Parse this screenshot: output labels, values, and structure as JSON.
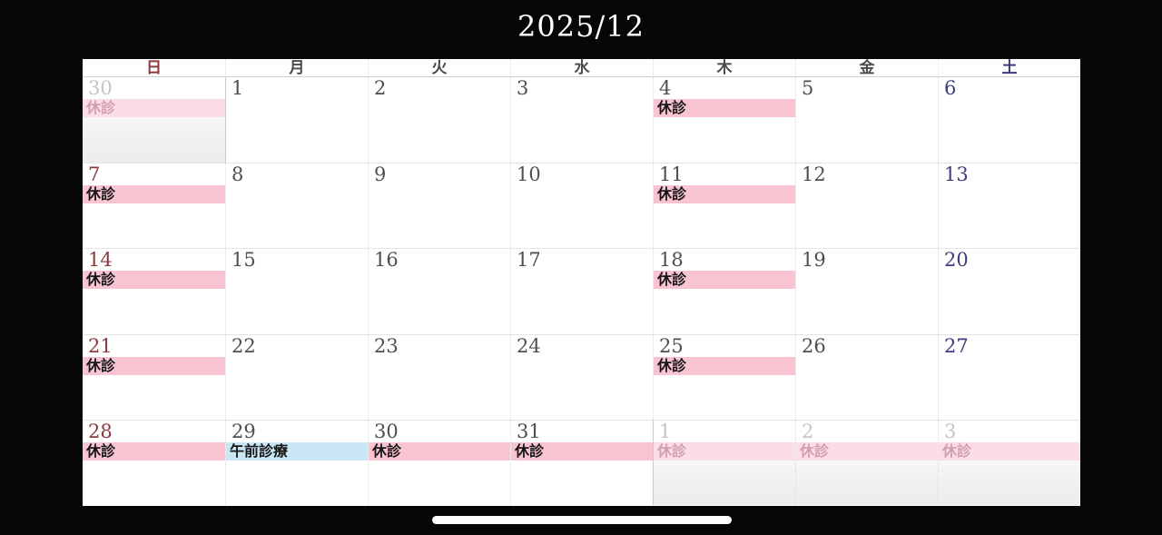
{
  "title": "2025/12",
  "colors": {
    "sunday_text": "#8b3a3e",
    "saturday_text": "#3c3c7e",
    "weekday_text": "#4f4f4f",
    "adjacent_text": "#c2c6c9",
    "event_closed_bg": "#f9c4d2",
    "event_closed_faded_bg": "#fbdce7",
    "event_morning_bg": "#c9e6f5",
    "event_text": "#161616",
    "event_text_faded": "#d29fb1",
    "title_text": "#ffffff"
  },
  "weekday_header": [
    {
      "label": "日",
      "role": "sunday"
    },
    {
      "label": "月",
      "role": "weekday"
    },
    {
      "label": "火",
      "role": "weekday"
    },
    {
      "label": "水",
      "role": "weekday"
    },
    {
      "label": "木",
      "role": "weekday"
    },
    {
      "label": "金",
      "role": "weekday"
    },
    {
      "label": "土",
      "role": "saturday"
    }
  ],
  "weeks": [
    {
      "days": [
        {
          "date": "30",
          "in_month": "prev",
          "weekday": "sun",
          "event": {
            "label": "休診",
            "style": "closed_faded"
          }
        },
        {
          "date": "1",
          "in_month": "current",
          "weekday": "mon",
          "month_start": true,
          "event": null
        },
        {
          "date": "2",
          "in_month": "current",
          "weekday": "tue",
          "event": null
        },
        {
          "date": "3",
          "in_month": "current",
          "weekday": "wed",
          "event": null
        },
        {
          "date": "4",
          "in_month": "current",
          "weekday": "thu",
          "event": {
            "label": "休診",
            "style": "closed"
          }
        },
        {
          "date": "5",
          "in_month": "current",
          "weekday": "fri",
          "event": null
        },
        {
          "date": "6",
          "in_month": "current",
          "weekday": "sat",
          "event": null
        }
      ]
    },
    {
      "days": [
        {
          "date": "7",
          "in_month": "current",
          "weekday": "sun",
          "event": {
            "label": "休診",
            "style": "closed"
          }
        },
        {
          "date": "8",
          "in_month": "current",
          "weekday": "mon",
          "event": null
        },
        {
          "date": "9",
          "in_month": "current",
          "weekday": "tue",
          "event": null
        },
        {
          "date": "10",
          "in_month": "current",
          "weekday": "wed",
          "event": null
        },
        {
          "date": "11",
          "in_month": "current",
          "weekday": "thu",
          "event": {
            "label": "休診",
            "style": "closed"
          }
        },
        {
          "date": "12",
          "in_month": "current",
          "weekday": "fri",
          "event": null
        },
        {
          "date": "13",
          "in_month": "current",
          "weekday": "sat",
          "event": null
        }
      ]
    },
    {
      "days": [
        {
          "date": "14",
          "in_month": "current",
          "weekday": "sun",
          "event": {
            "label": "休診",
            "style": "closed"
          }
        },
        {
          "date": "15",
          "in_month": "current",
          "weekday": "mon",
          "event": null
        },
        {
          "date": "16",
          "in_month": "current",
          "weekday": "tue",
          "event": null
        },
        {
          "date": "17",
          "in_month": "current",
          "weekday": "wed",
          "event": null
        },
        {
          "date": "18",
          "in_month": "current",
          "weekday": "thu",
          "event": {
            "label": "休診",
            "style": "closed"
          }
        },
        {
          "date": "19",
          "in_month": "current",
          "weekday": "fri",
          "event": null
        },
        {
          "date": "20",
          "in_month": "current",
          "weekday": "sat",
          "event": null
        }
      ]
    },
    {
      "days": [
        {
          "date": "21",
          "in_month": "current",
          "weekday": "sun",
          "event": {
            "label": "休診",
            "style": "closed"
          }
        },
        {
          "date": "22",
          "in_month": "current",
          "weekday": "mon",
          "event": null
        },
        {
          "date": "23",
          "in_month": "current",
          "weekday": "tue",
          "event": null
        },
        {
          "date": "24",
          "in_month": "current",
          "weekday": "wed",
          "event": null
        },
        {
          "date": "25",
          "in_month": "current",
          "weekday": "thu",
          "event": {
            "label": "休診",
            "style": "closed"
          }
        },
        {
          "date": "26",
          "in_month": "current",
          "weekday": "fri",
          "event": null
        },
        {
          "date": "27",
          "in_month": "current",
          "weekday": "sat",
          "event": null
        }
      ]
    },
    {
      "days": [
        {
          "date": "28",
          "in_month": "current",
          "weekday": "sun",
          "event": {
            "label": "休診",
            "style": "closed"
          }
        },
        {
          "date": "29",
          "in_month": "current",
          "weekday": "mon",
          "event": {
            "label": "午前診療",
            "style": "morning"
          }
        },
        {
          "date": "30",
          "in_month": "current",
          "weekday": "tue",
          "event": {
            "label": "休診",
            "style": "closed"
          }
        },
        {
          "date": "31",
          "in_month": "current",
          "weekday": "wed",
          "event": {
            "label": "休診",
            "style": "closed"
          }
        },
        {
          "date": "1",
          "in_month": "next",
          "weekday": "thu",
          "month_start": true,
          "event": {
            "label": "休診",
            "style": "closed_faded"
          }
        },
        {
          "date": "2",
          "in_month": "next",
          "weekday": "fri",
          "event": {
            "label": "休診",
            "style": "closed_faded"
          }
        },
        {
          "date": "3",
          "in_month": "next",
          "weekday": "sat",
          "event": {
            "label": "休診",
            "style": "closed_faded"
          }
        }
      ]
    }
  ]
}
